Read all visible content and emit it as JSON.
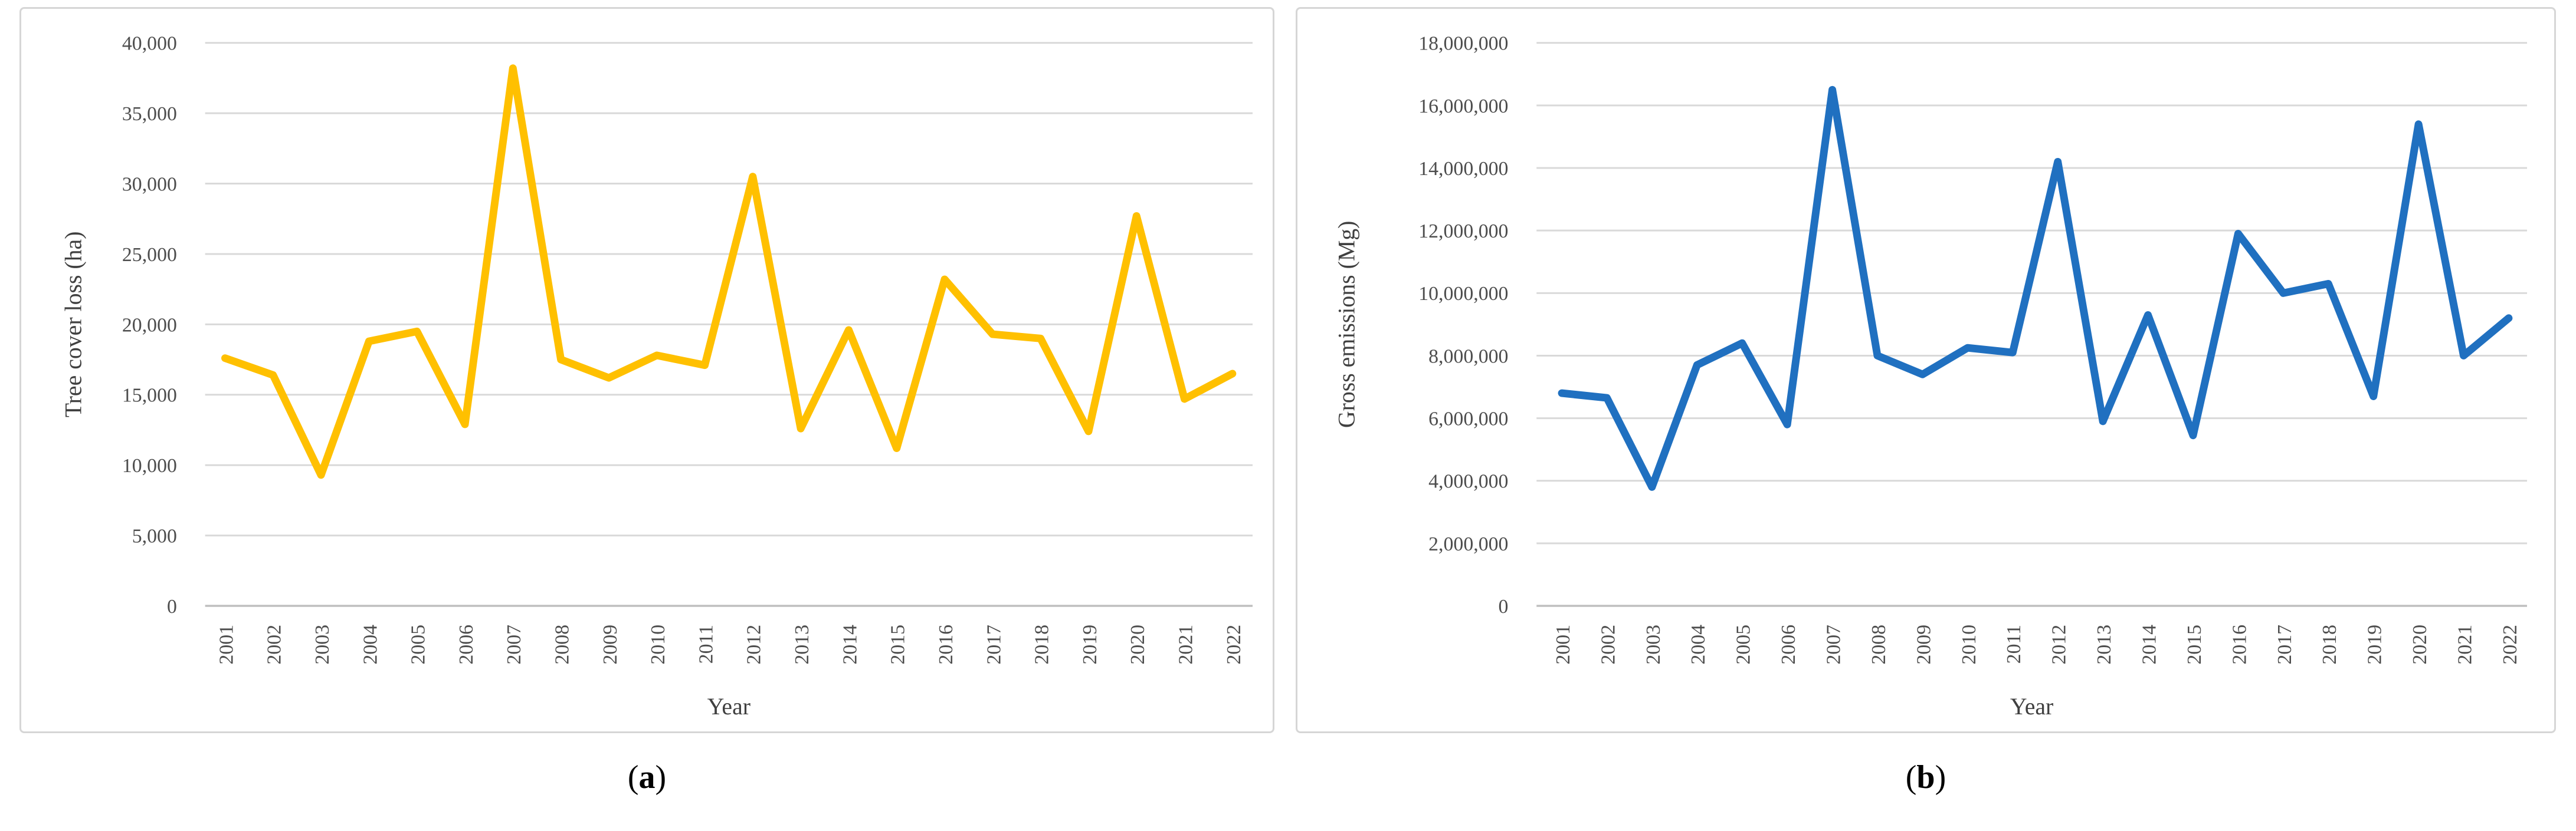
{
  "figure": {
    "caption_a": {
      "open": "(",
      "letter": "a",
      "close": ")"
    },
    "caption_b": {
      "open": "(",
      "letter": "b",
      "close": ")"
    }
  },
  "colors": {
    "line_a": "#FFC000",
    "line_b": "#2070C0",
    "gridline": "#D9D9D9",
    "axis_line": "#BFBFBF",
    "tick_text": "#4D4D4D",
    "title_text": "#404040",
    "panel_border": "#D6D6D6"
  },
  "chart_data": [
    {
      "id": "a",
      "type": "line",
      "series_name": "Tree cover loss",
      "title": "",
      "xlabel": "Year",
      "ylabel": "Tree cover loss (ha)",
      "x": [
        "2001",
        "2002",
        "2003",
        "2004",
        "2005",
        "2006",
        "2007",
        "2008",
        "2009",
        "2010",
        "2011",
        "2012",
        "2013",
        "2014",
        "2015",
        "2016",
        "2017",
        "2018",
        "2019",
        "2020",
        "2021",
        "2022"
      ],
      "values": [
        17600,
        16400,
        9300,
        18800,
        19500,
        12900,
        38200,
        17500,
        16200,
        17800,
        17100,
        30500,
        12600,
        19600,
        11200,
        23200,
        19300,
        19000,
        12400,
        27700,
        14700,
        16500
      ],
      "ylim": [
        0,
        40000
      ],
      "ytick_step": 5000,
      "grid": true,
      "legend": "none",
      "line_color": "#FFC000"
    },
    {
      "id": "b",
      "type": "line",
      "series_name": "Gross emissions",
      "title": "",
      "xlabel": "Year",
      "ylabel": "Gross emissions (Mg)",
      "x": [
        "2001",
        "2002",
        "2003",
        "2004",
        "2005",
        "2006",
        "2007",
        "2008",
        "2009",
        "2010",
        "2011",
        "2012",
        "2013",
        "2014",
        "2015",
        "2016",
        "2017",
        "2018",
        "2019",
        "2020",
        "2021",
        "2022"
      ],
      "values": [
        6800000,
        6650000,
        3800000,
        7700000,
        8400000,
        5800000,
        16500000,
        8000000,
        7400000,
        8250000,
        8100000,
        14200000,
        5900000,
        9300000,
        5450000,
        11900000,
        10000000,
        10300000,
        6700000,
        15400000,
        8000000,
        9200000
      ],
      "ylim": [
        0,
        18000000
      ],
      "ytick_step": 2000000,
      "grid": true,
      "legend": "none",
      "line_color": "#2070C0"
    }
  ]
}
